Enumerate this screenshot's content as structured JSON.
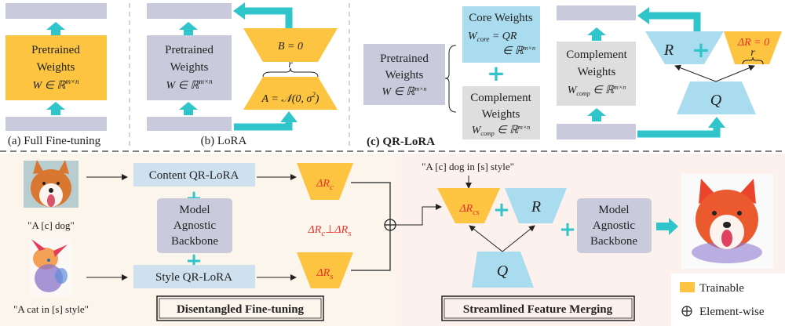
{
  "colors": {
    "trainable": "#fcc440",
    "frozen_gray": "#c9cbdc",
    "core_blue": "#a9dcee",
    "complement_gray": "#dedede",
    "arrow_cyan": "#2fc5cb",
    "highlight_red": "#e8302a",
    "bottom_bg": "#fcf5ec"
  },
  "panel_a": {
    "caption": "(a) Full Fine-tuning",
    "line1": "Pretrained",
    "line2": "Weights",
    "formula": "W ∈ ℝ",
    "formula_sup": "m×n"
  },
  "panel_b": {
    "caption": "(b) LoRA",
    "line1": "Pretrained",
    "line2": "Weights",
    "formula": "W ∈ ℝ",
    "formula_sup": "m×n",
    "b_label": "B = 0",
    "a_label": "A = 𝒩(0, σ",
    "a_sup": "2",
    "a_close": ")",
    "rank": "r"
  },
  "panel_c": {
    "caption": "(c) QR-LoRA",
    "pretrained": {
      "line1": "Pretrained",
      "line2": "Weights",
      "formula": "W ∈ ℝ",
      "formula_sup": "m×n"
    },
    "core": {
      "title": "Core Weights",
      "formula": "W",
      "formula_sub": "core",
      "formula_rest": " = QR",
      "space": "∈ ℝ",
      "space_sup": "m×n"
    },
    "complement": {
      "line1": "Complement",
      "line2": "Weights",
      "formula": "W",
      "formula_sub": "comp",
      "space": " ∈ ℝ",
      "space_sup": "m×n"
    },
    "r_label": "R",
    "q_label": "Q",
    "delta_r": "ΔR = 0",
    "rank": "r"
  },
  "fine_tuning": {
    "title": "Disentangled Fine-tuning",
    "content_prompt": "\"A [c] dog\"",
    "style_prompt": "\"A cat in [s] style\"",
    "content_lora": "Content QR-LoRA",
    "style_lora": "Style QR-LoRA",
    "backbone": [
      "Model",
      "Agnostic",
      "Backbone"
    ],
    "delta_rc": "ΔR",
    "delta_rc_sub": "c",
    "delta_rs": "ΔR",
    "delta_rs_sub": "s",
    "orth": {
      "a": "ΔR",
      "a_sub": "c",
      "op": "⊥",
      "b": "ΔR",
      "b_sub": "s"
    }
  },
  "merging": {
    "title": "Streamlined Feature Merging",
    "prompt": "\"A [c] dog in [s] style\"",
    "delta_rcs": "ΔR",
    "delta_rcs_sub": "cs",
    "r_label": "R",
    "q_label": "Q",
    "backbone": [
      "Model",
      "Agnostic",
      "Backbone"
    ]
  },
  "legend": {
    "trainable": "Trainable",
    "elementwise": "Element-wise"
  }
}
